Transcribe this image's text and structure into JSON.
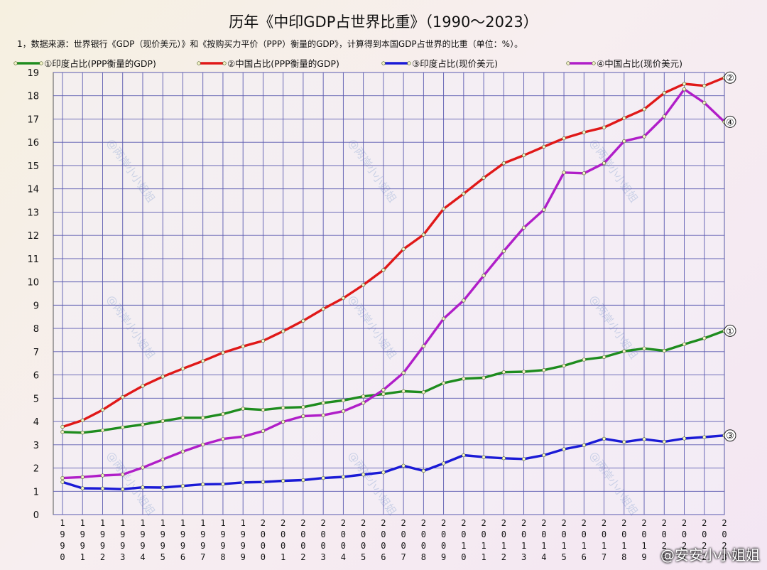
{
  "chart_data": {
    "type": "line",
    "title": "历年《中印GDP占世界比重》（1990～2023）",
    "note": "1，数据来源：世界银行《GDP（现价美元）》和《按购买力平价（PPP）衡量的GDP》，计算得到本国GDP占世界的比重（单位：%）。",
    "ylim": [
      0,
      19
    ],
    "yticks": [
      0,
      1,
      2,
      3,
      4,
      5,
      6,
      7,
      8,
      9,
      10,
      11,
      12,
      13,
      14,
      15,
      16,
      17,
      18,
      19
    ],
    "grid": true,
    "legend_position": "top",
    "x": [
      1990,
      1991,
      1992,
      1993,
      1994,
      1995,
      1996,
      1997,
      1998,
      1999,
      2000,
      2001,
      2002,
      2003,
      2004,
      2005,
      2006,
      2007,
      2008,
      2009,
      2010,
      2011,
      2012,
      2013,
      2014,
      2015,
      2016,
      2017,
      2018,
      2019,
      2020,
      2021,
      2022,
      2023
    ],
    "series": [
      {
        "name": "①印度占比(PPP衡量的GDP)",
        "color": "#1e8c1e",
        "end_label": "①",
        "values": [
          3.55,
          3.52,
          3.62,
          3.75,
          3.87,
          4.02,
          4.16,
          4.16,
          4.32,
          4.55,
          4.5,
          4.59,
          4.62,
          4.8,
          4.91,
          5.08,
          5.18,
          5.3,
          5.26,
          5.65,
          5.84,
          5.88,
          6.12,
          6.14,
          6.21,
          6.4,
          6.66,
          6.77,
          7.02,
          7.14,
          7.04,
          7.32,
          7.58,
          7.9
        ]
      },
      {
        "name": "②中国占比(PPP衡量的GDP)",
        "color": "#e01818",
        "end_label": "②",
        "values": [
          3.77,
          4.05,
          4.5,
          5.05,
          5.53,
          5.93,
          6.27,
          6.6,
          6.96,
          7.23,
          7.47,
          7.88,
          8.33,
          8.84,
          9.3,
          9.87,
          10.51,
          11.41,
          12.03,
          13.14,
          13.79,
          14.47,
          15.1,
          15.44,
          15.81,
          16.17,
          16.43,
          16.64,
          17.04,
          17.42,
          18.12,
          18.51,
          18.43,
          18.78
        ]
      },
      {
        "name": "③印度占比(现价美元)",
        "color": "#1a1ad6",
        "end_label": "③",
        "values": [
          1.4,
          1.13,
          1.12,
          1.09,
          1.17,
          1.16,
          1.23,
          1.3,
          1.31,
          1.38,
          1.4,
          1.45,
          1.48,
          1.57,
          1.62,
          1.72,
          1.81,
          2.1,
          1.88,
          2.2,
          2.55,
          2.47,
          2.42,
          2.39,
          2.55,
          2.81,
          2.98,
          3.26,
          3.12,
          3.24,
          3.13,
          3.27,
          3.33,
          3.4
        ]
      },
      {
        "name": "④中国占比(现价美元)",
        "color": "#b01ec8",
        "end_label": "④",
        "values": [
          1.57,
          1.61,
          1.68,
          1.72,
          2.02,
          2.37,
          2.71,
          3.01,
          3.25,
          3.35,
          3.59,
          3.99,
          4.23,
          4.27,
          4.44,
          4.8,
          5.36,
          6.09,
          7.24,
          8.42,
          9.2,
          10.27,
          11.32,
          12.33,
          13.1,
          14.7,
          14.67,
          15.1,
          16.05,
          16.25,
          17.11,
          18.28,
          17.7,
          16.88
        ]
      }
    ]
  },
  "watermark": "@两岸小小姐姐",
  "attribution": "@安安小小姐姐"
}
